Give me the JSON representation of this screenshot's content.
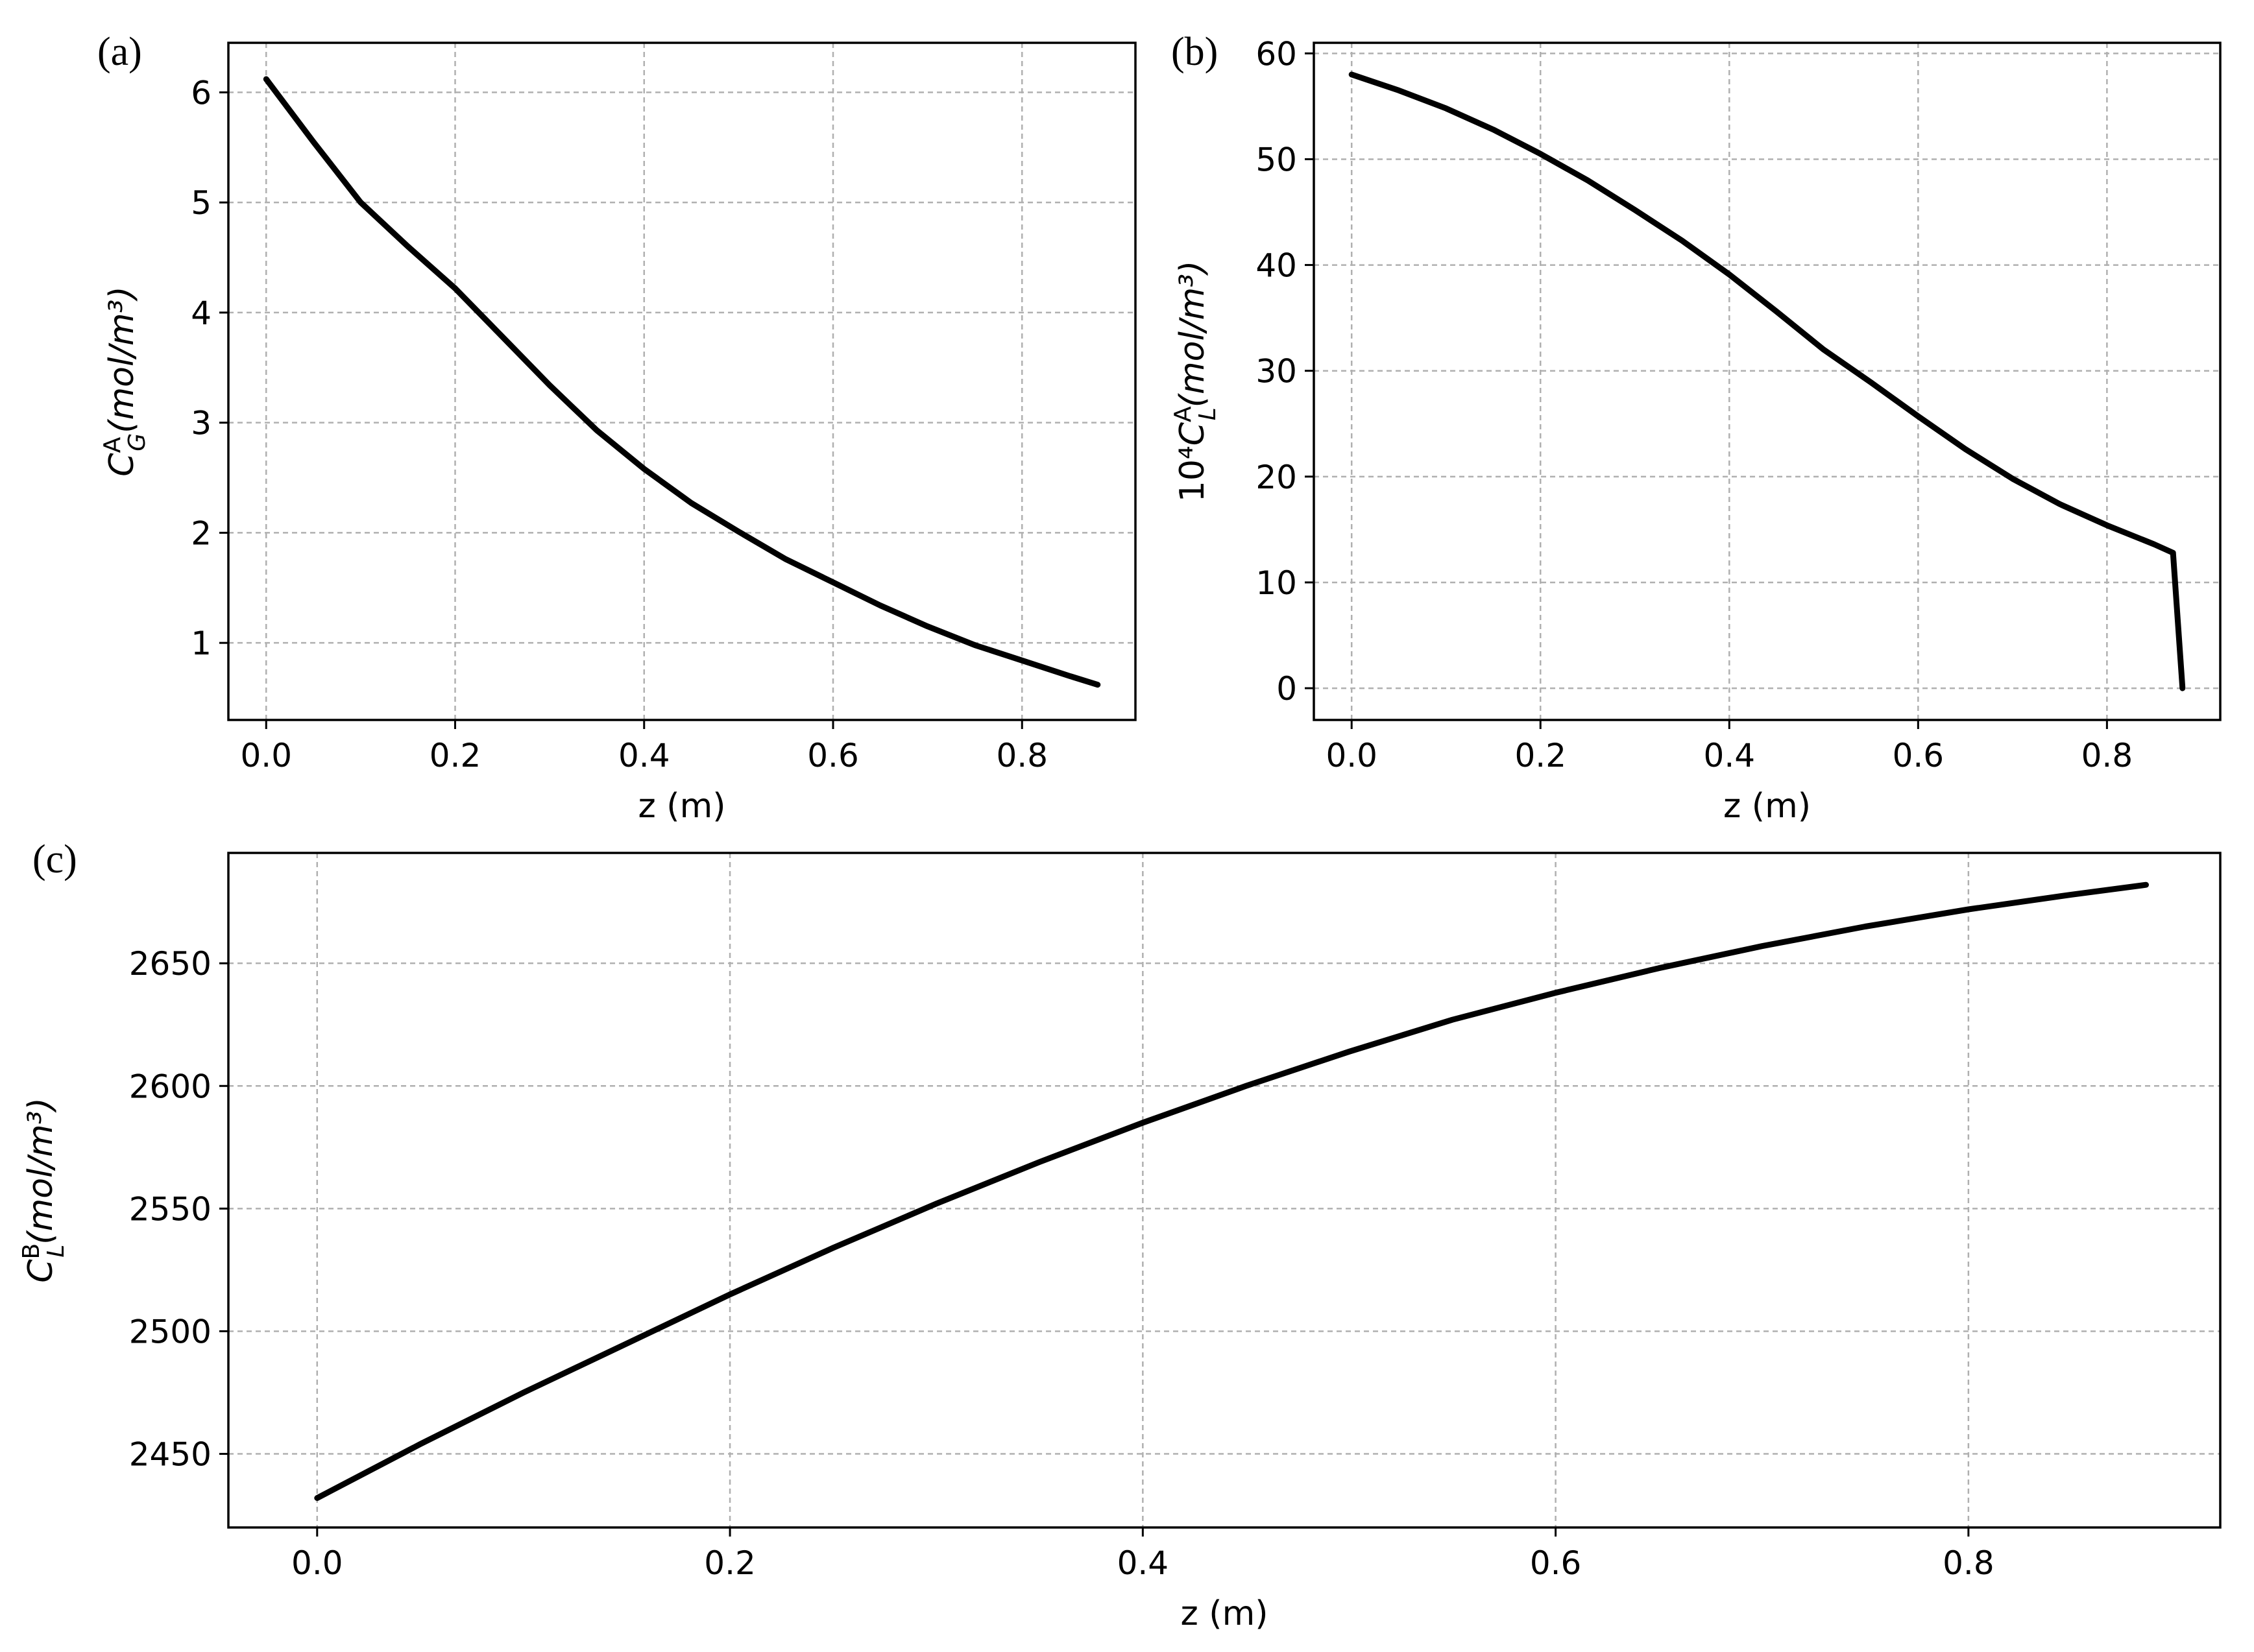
{
  "chart_data": [
    {
      "id": "a",
      "type": "line",
      "panel_label": "(a)",
      "xlabel": "z (m)",
      "ylabel": {
        "prefix": "",
        "base": "C",
        "sub": "G",
        "sup": "A",
        "unit": "(mol/m³)"
      },
      "xlim": [
        -0.04,
        0.92
      ],
      "ylim": [
        0.3,
        6.45
      ],
      "xticks": [
        0.0,
        0.2,
        0.4,
        0.6,
        0.8
      ],
      "xtick_labels": [
        "0.0",
        "0.2",
        "0.4",
        "0.6",
        "0.8"
      ],
      "yticks": [
        1,
        2,
        3,
        4,
        5,
        6
      ],
      "ytick_labels": [
        "1",
        "2",
        "3",
        "4",
        "5",
        "6"
      ],
      "grid": true,
      "series": [
        {
          "color": "#000000",
          "x": [
            0.0,
            0.05,
            0.1,
            0.15,
            0.2,
            0.25,
            0.3,
            0.35,
            0.4,
            0.45,
            0.5,
            0.55,
            0.6,
            0.65,
            0.7,
            0.75,
            0.8,
            0.85,
            0.88
          ],
          "y": [
            6.12,
            5.55,
            5.0,
            4.6,
            4.22,
            3.78,
            3.34,
            2.93,
            2.58,
            2.27,
            2.01,
            1.76,
            1.55,
            1.34,
            1.15,
            0.98,
            0.84,
            0.7,
            0.62
          ]
        }
      ]
    },
    {
      "id": "b",
      "type": "line",
      "panel_label": "(b)",
      "xlabel": "z (m)",
      "ylabel": {
        "prefix": "10⁴",
        "base": "C",
        "sub": "L",
        "sup": "A",
        "unit": "(mol/m³)"
      },
      "xlim": [
        -0.04,
        0.92
      ],
      "ylim": [
        -3,
        61
      ],
      "xticks": [
        0.0,
        0.2,
        0.4,
        0.6,
        0.8
      ],
      "xtick_labels": [
        "0.0",
        "0.2",
        "0.4",
        "0.6",
        "0.8"
      ],
      "yticks": [
        0,
        10,
        20,
        30,
        40,
        50,
        60
      ],
      "ytick_labels": [
        "0",
        "10",
        "20",
        "30",
        "40",
        "50",
        "60"
      ],
      "grid": true,
      "series": [
        {
          "color": "#000000",
          "x": [
            0.0,
            0.05,
            0.1,
            0.15,
            0.2,
            0.25,
            0.3,
            0.35,
            0.4,
            0.45,
            0.5,
            0.55,
            0.6,
            0.65,
            0.7,
            0.75,
            0.8,
            0.85,
            0.87,
            0.88
          ],
          "y": [
            58.0,
            56.5,
            54.8,
            52.8,
            50.5,
            48.0,
            45.2,
            42.3,
            39.1,
            35.6,
            32.0,
            28.9,
            25.7,
            22.6,
            19.8,
            17.4,
            15.4,
            13.6,
            12.8,
            0.0
          ]
        }
      ]
    },
    {
      "id": "c",
      "type": "line",
      "panel_label": "(c)",
      "xlabel": "z (m)",
      "ylabel": {
        "prefix": "",
        "base": "C",
        "sub": "L",
        "sup": "B",
        "unit": "(mol/m³)"
      },
      "xlim": [
        -0.043,
        0.922
      ],
      "ylim": [
        2420,
        2695
      ],
      "xticks": [
        0.0,
        0.2,
        0.4,
        0.6,
        0.8
      ],
      "xtick_labels": [
        "0.0",
        "0.2",
        "0.4",
        "0.6",
        "0.8"
      ],
      "yticks": [
        2450,
        2500,
        2550,
        2600,
        2650
      ],
      "ytick_labels": [
        "2450",
        "2500",
        "2550",
        "2600",
        "2650"
      ],
      "grid": true,
      "series": [
        {
          "color": "#000000",
          "x": [
            0.0,
            0.05,
            0.1,
            0.15,
            0.2,
            0.25,
            0.3,
            0.35,
            0.4,
            0.45,
            0.5,
            0.55,
            0.6,
            0.65,
            0.7,
            0.75,
            0.8,
            0.85,
            0.886
          ],
          "y": [
            2432,
            2454,
            2475,
            2495,
            2515,
            2534,
            2552,
            2569,
            2585,
            2600,
            2614,
            2627,
            2638,
            2648,
            2657,
            2665,
            2672,
            2678,
            2682
          ]
        }
      ]
    }
  ]
}
